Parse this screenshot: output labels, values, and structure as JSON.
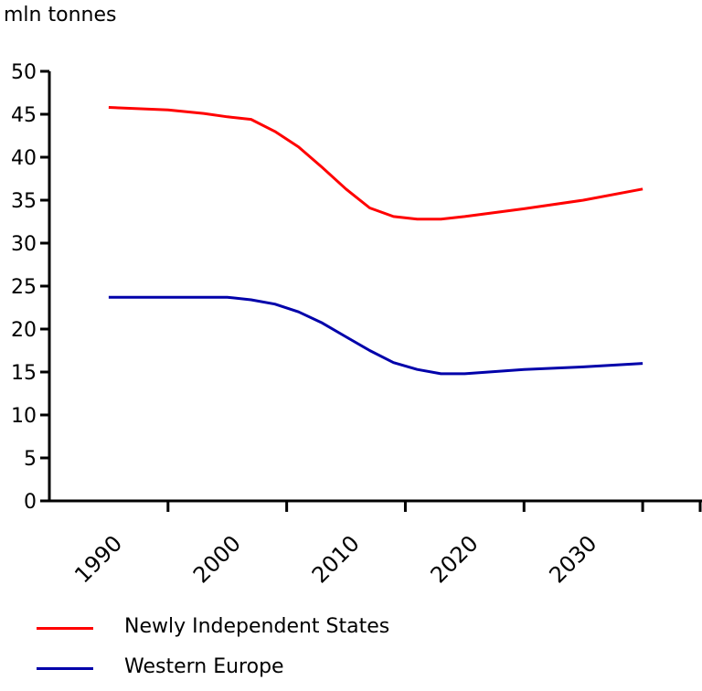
{
  "chart_data": {
    "type": "line",
    "ylabel": "mln tonnes",
    "ylim": [
      0,
      50
    ],
    "y_ticks": [
      "0",
      "5",
      "10",
      "15",
      "20",
      "25",
      "30",
      "35",
      "40",
      "45",
      "50"
    ],
    "xlim": [
      1985,
      2040
    ],
    "x_ticks": [
      "1990",
      "2000",
      "2010",
      "2020",
      "2030"
    ],
    "legend_position": "bottom-left",
    "grid": false,
    "series": [
      {
        "name": "Newly Independent States",
        "color": "#ff0000",
        "x": [
          1990,
          1995,
          1998,
          2000,
          2002,
          2004,
          2006,
          2008,
          2010,
          2012,
          2014,
          2016,
          2018,
          2020,
          2025,
          2030,
          2035
        ],
        "y": [
          45.8,
          45.5,
          45.1,
          44.7,
          44.4,
          43.0,
          41.2,
          38.8,
          36.3,
          34.1,
          33.1,
          32.8,
          32.8,
          33.1,
          34.0,
          35.0,
          36.3
        ]
      },
      {
        "name": "Western Europe",
        "color": "#0000aa",
        "x": [
          1990,
          1995,
          1998,
          2000,
          2002,
          2004,
          2006,
          2008,
          2010,
          2012,
          2014,
          2016,
          2018,
          2020,
          2025,
          2030,
          2035
        ],
        "y": [
          23.7,
          23.7,
          23.7,
          23.7,
          23.4,
          22.9,
          22.0,
          20.7,
          19.1,
          17.5,
          16.1,
          15.3,
          14.8,
          14.8,
          15.3,
          15.6,
          16.0
        ]
      }
    ]
  }
}
